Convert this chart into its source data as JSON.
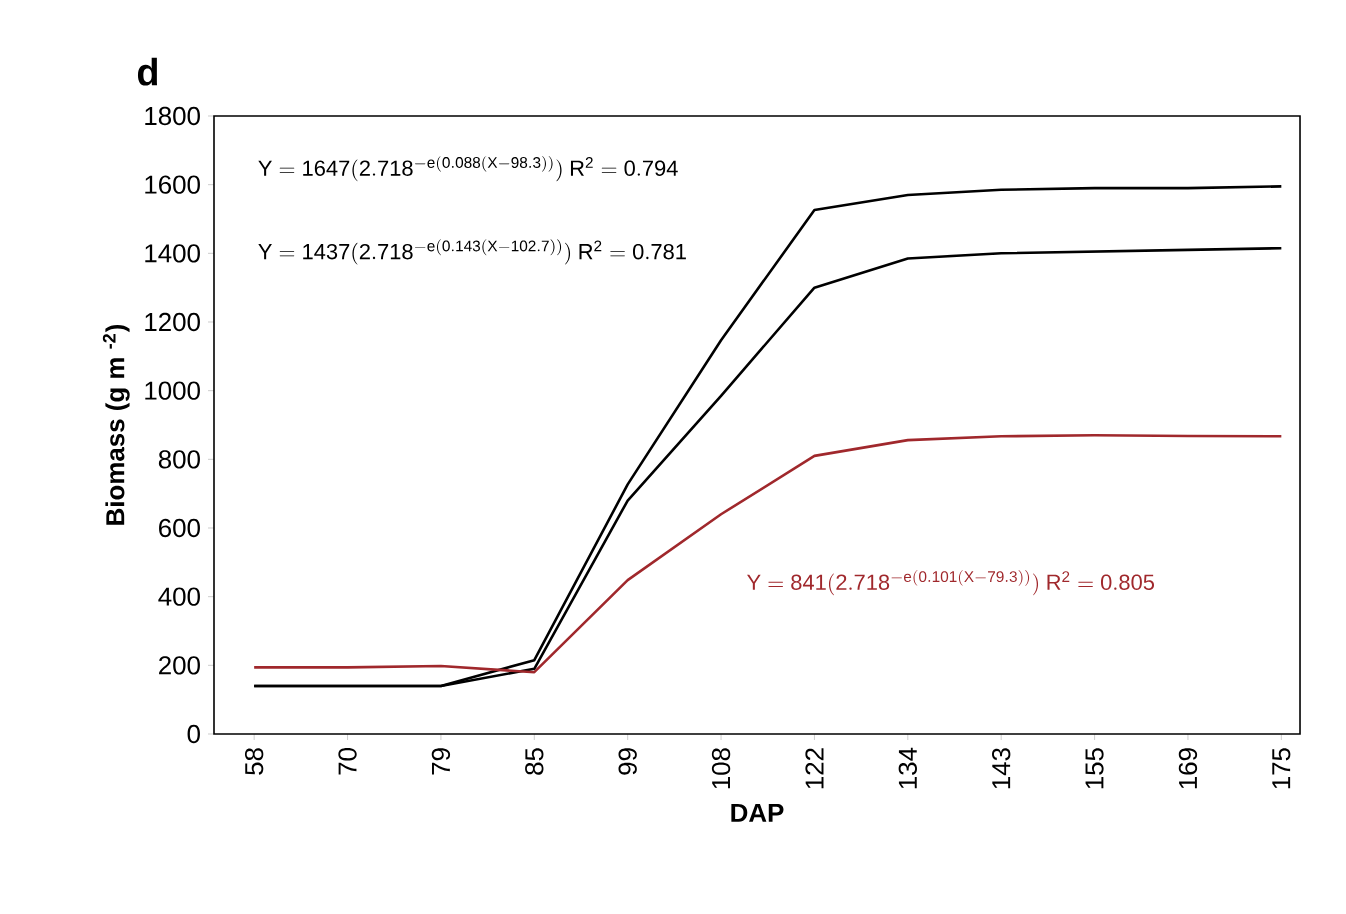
{
  "chart_data": {
    "type": "line",
    "title": "d",
    "xlabel": "DAP",
    "ylabel": "Biomass (g m $^{-2}$)",
    "categories": [
      "58",
      "70",
      "79",
      "85",
      "99",
      "108",
      "122",
      "134",
      "143",
      "155",
      "169",
      "175"
    ],
    "series": [
      {
        "color": "#000000",
        "values": [
          140,
          140,
          140,
          215,
          727,
          1147,
          1526,
          1570,
          1585,
          1590,
          1590,
          1595
        ]
      },
      {
        "color": "#000000",
        "values": [
          140,
          140,
          140,
          190,
          680,
          985,
          1300,
          1385,
          1400,
          1405,
          1410,
          1415
        ]
      },
      {
        "color": "#a0282c",
        "values": [
          194,
          194,
          198,
          180,
          448,
          640,
          810,
          856,
          867,
          870,
          868,
          867
        ]
      }
    ],
    "ylim": [
      0,
      1800
    ],
    "yticks": [
      0,
      200,
      400,
      600,
      800,
      1000,
      1200,
      1400,
      1600,
      1800
    ],
    "grid": false,
    "marker": "none",
    "line_style": "solid",
    "annotations": [
      "\\mathrm{Y=1647(2.718^{-e(0.088(X-98.3))})\\ R^{2}=0.794}",
      "\\mathrm{Y=1437(2.718^{-e(0.143(X-102.7))})\\ R^{2}=0.781}",
      "\\mathrm{Y=841(2.718^{-e(0.101(X-79.3))})\\ R^{2}=0.805}"
    ]
  }
}
